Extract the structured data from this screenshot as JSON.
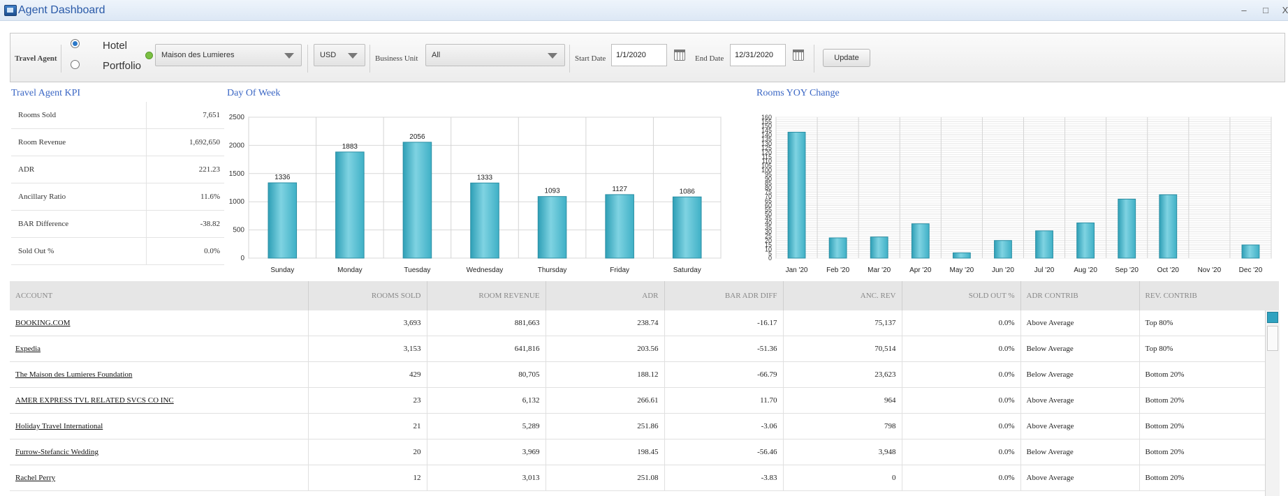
{
  "window": {
    "title": "Agent Dashboard",
    "minimize": "–",
    "maximize": "□",
    "close": "X"
  },
  "toolbar": {
    "travel_agent_label": "Travel Agent",
    "scope_options": [
      "Hotel",
      "Portfolio"
    ],
    "scope_selected": "Hotel",
    "hotel_select": "Maison des Lumieres",
    "currency_select": "USD",
    "business_unit_label": "Business Unit",
    "business_unit_select": "All",
    "start_date_label": "Start Date",
    "start_date": "1/1/2020",
    "end_date_label": "End Date",
    "end_date": "12/31/2020",
    "update_label": "Update",
    "status_color": "#7bc043"
  },
  "kpi": {
    "title": "Travel Agent KPI",
    "rows": [
      {
        "label": "Rooms Sold",
        "value": "7,651"
      },
      {
        "label": "Room Revenue",
        "value": "1,692,650"
      },
      {
        "label": "ADR",
        "value": "221.23"
      },
      {
        "label": "Ancillary Ratio",
        "value": "11.6%"
      },
      {
        "label": "BAR Difference",
        "value": "-38.82"
      },
      {
        "label": "Sold Out %",
        "value": "0.0%"
      }
    ]
  },
  "chart_data": [
    {
      "type": "bar",
      "title": "Day Of Week",
      "categories": [
        "Sunday",
        "Monday",
        "Tuesday",
        "Wednesday",
        "Thursday",
        "Friday",
        "Saturday"
      ],
      "values": [
        1336,
        1883,
        2056,
        1333,
        1093,
        1127,
        1086
      ],
      "data_labels": true,
      "ylim": [
        0,
        2500
      ],
      "yticks": [
        0,
        500,
        1000,
        1500,
        2000,
        2500
      ],
      "grid": true,
      "bar_color": "#3fb0c6"
    },
    {
      "type": "bar",
      "title": "Rooms YOY Change",
      "categories": [
        "Jan '20",
        "Feb '20",
        "Mar '20",
        "Apr '20",
        "May '20",
        "Jun '20",
        "Jul '20",
        "Aug '20",
        "Sep '20",
        "Oct '20",
        "Nov '20",
        "Dec '20"
      ],
      "values": [
        143,
        23,
        24,
        39,
        6,
        20,
        31,
        40,
        67,
        72,
        0,
        15
      ],
      "data_labels": false,
      "ylim": [
        0,
        160
      ],
      "yticks": [
        0,
        5,
        10,
        15,
        20,
        25,
        30,
        35,
        40,
        45,
        50,
        55,
        60,
        65,
        70,
        75,
        80,
        85,
        90,
        95,
        100,
        105,
        110,
        115,
        120,
        125,
        130,
        135,
        140,
        145,
        150,
        155,
        160
      ],
      "grid": true,
      "bar_color": "#3fb0c6"
    }
  ],
  "grid": {
    "columns": [
      "ACCOUNT",
      "ROOMS SOLD",
      "ROOM REVENUE",
      "ADR",
      "BAR ADR DIFF",
      "ANC. REV",
      "SOLD OUT %",
      "ADR CONTRIB",
      "REV. CONTRIB"
    ],
    "rows": [
      [
        "BOOKING.COM",
        "3,693",
        "881,663",
        "238.74",
        "-16.17",
        "75,137",
        "0.0%",
        "Above Average",
        "Top 80%"
      ],
      [
        "Expedia",
        "3,153",
        "641,816",
        "203.56",
        "-51.36",
        "70,514",
        "0.0%",
        "Below Average",
        "Top 80%"
      ],
      [
        "The Maison des Lumieres Foundation",
        "429",
        "80,705",
        "188.12",
        "-66.79",
        "23,623",
        "0.0%",
        "Below Average",
        "Bottom 20%"
      ],
      [
        "AMER EXPRESS TVL RELATED SVCS CO INC",
        "23",
        "6,132",
        "266.61",
        "11.70",
        "964",
        "0.0%",
        "Above Average",
        "Bottom 20%"
      ],
      [
        "Holiday Travel International",
        "21",
        "5,289",
        "251.86",
        "-3.06",
        "798",
        "0.0%",
        "Above Average",
        "Bottom 20%"
      ],
      [
        "Furrow-Stefancic Wedding",
        "20",
        "3,969",
        "198.45",
        "-56.46",
        "3,948",
        "0.0%",
        "Below Average",
        "Bottom 20%"
      ],
      [
        "Rachel Perry",
        "12",
        "3,013",
        "251.08",
        "-3.83",
        "0",
        "0.0%",
        "Above Average",
        "Bottom 20%"
      ]
    ]
  }
}
